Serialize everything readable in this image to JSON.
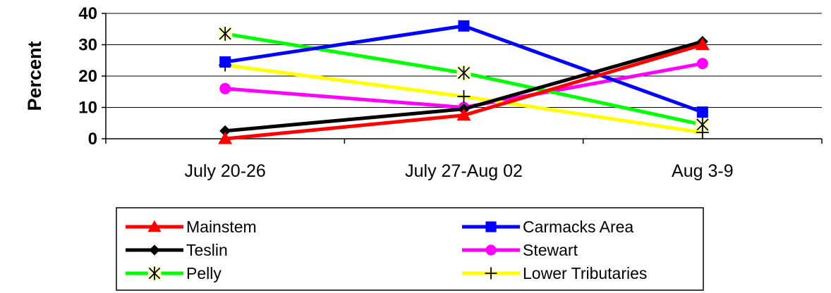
{
  "chart_data": {
    "type": "line",
    "title": "",
    "xlabel": "",
    "ylabel": "Percent",
    "categories": [
      "July 20-26",
      "July 27-Aug 02",
      "Aug 3-9"
    ],
    "ylim": [
      0,
      40
    ],
    "yticks": [
      "0",
      "10",
      "20",
      "30",
      "40"
    ],
    "grid": "horizontal",
    "legend": "bottom",
    "series": [
      {
        "name": "Mainstem",
        "values": [
          0,
          7.5,
          30
        ],
        "color": "#ff0000",
        "marker": "triangle"
      },
      {
        "name": "Carmacks Area",
        "values": [
          24.5,
          36,
          8.5
        ],
        "color": "#0000ff",
        "marker": "square"
      },
      {
        "name": "Teslin",
        "values": [
          2.5,
          9.5,
          31
        ],
        "color": "#000000",
        "marker": "diamond"
      },
      {
        "name": "Stewart",
        "values": [
          16,
          10,
          24
        ],
        "color": "#ff00ff",
        "marker": "circle"
      },
      {
        "name": "Pelly",
        "values": [
          33.5,
          21,
          4.5
        ],
        "color": "#00ff00",
        "marker": "asterisk"
      },
      {
        "name": "Lower Tributaries",
        "values": [
          23.5,
          13.5,
          2
        ],
        "color": "#ffff00",
        "marker": "plus"
      }
    ]
  }
}
